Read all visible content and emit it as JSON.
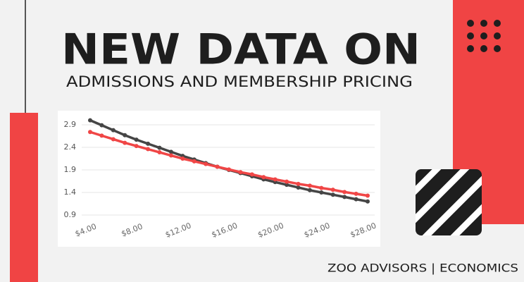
{
  "header": {
    "title": "NEW DATA ON",
    "subtitle": "ADMISSIONS AND MEMBERSHIP PRICING"
  },
  "footer": "ZOO ADVISORS | ECONOMICS",
  "chart_data": {
    "type": "line",
    "x": [
      4,
      5,
      6,
      7,
      8,
      9,
      10,
      11,
      12,
      13,
      14,
      15,
      16,
      17,
      18,
      19,
      20,
      21,
      22,
      23,
      24,
      25,
      26,
      27,
      28
    ],
    "series": [
      {
        "color": "#454545",
        "values": [
          3.0,
          2.89,
          2.78,
          2.67,
          2.57,
          2.48,
          2.39,
          2.3,
          2.21,
          2.13,
          2.05,
          1.97,
          1.9,
          1.83,
          1.76,
          1.69,
          1.63,
          1.57,
          1.51,
          1.45,
          1.4,
          1.35,
          1.3,
          1.25,
          1.2
        ]
      },
      {
        "color": "#f04646",
        "values": [
          2.74,
          2.66,
          2.58,
          2.5,
          2.43,
          2.36,
          2.29,
          2.22,
          2.15,
          2.09,
          2.03,
          1.97,
          1.91,
          1.85,
          1.8,
          1.74,
          1.69,
          1.64,
          1.59,
          1.55,
          1.5,
          1.46,
          1.41,
          1.37,
          1.33
        ]
      }
    ],
    "xlim": [
      4,
      28
    ],
    "xticks": [
      {
        "value": 4,
        "label": "$4.00"
      },
      {
        "value": 8,
        "label": "$8.00"
      },
      {
        "value": 12,
        "label": "$12.00"
      },
      {
        "value": 16,
        "label": "$16.00"
      },
      {
        "value": 20,
        "label": "$20.00"
      },
      {
        "value": 24,
        "label": "$24.00"
      },
      {
        "value": 28,
        "label": "$28.00"
      }
    ],
    "ylim": [
      0.9,
      3.0
    ],
    "yticks": [
      0.9,
      1.4,
      1.9,
      2.4,
      2.9
    ],
    "grid": true
  }
}
